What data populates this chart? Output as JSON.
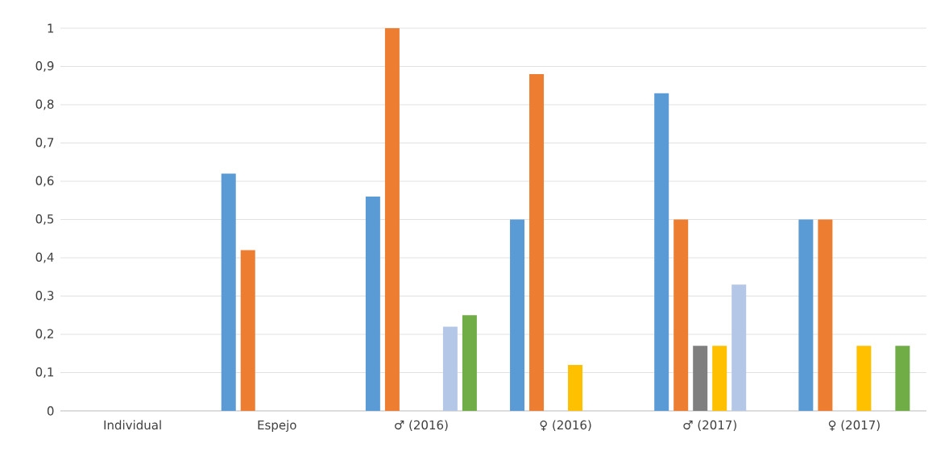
{
  "chart_data": {
    "type": "bar",
    "categories": [
      "Individual",
      "Espejo",
      "♂ (2016)",
      "♀ (2016)",
      "♂ (2017)",
      "♀ (2017)"
    ],
    "series": [
      {
        "color": "#5b9bd5",
        "values": [
          null,
          0.62,
          0.56,
          0.5,
          0.83,
          0.5
        ]
      },
      {
        "color": "#ed7d31",
        "values": [
          null,
          0.42,
          1,
          0.88,
          0.5,
          0.5
        ]
      },
      {
        "color": "#7f7f7f",
        "values": [
          null,
          null,
          null,
          null,
          0.17,
          null
        ]
      },
      {
        "color": "#ffc000",
        "values": [
          null,
          null,
          null,
          0.12,
          0.17,
          0.17
        ]
      },
      {
        "color": "#b4c7e7",
        "values": [
          null,
          null,
          0.22,
          null,
          0.33,
          null
        ]
      },
      {
        "color": "#70ad47",
        "values": [
          null,
          null,
          0.25,
          null,
          null,
          0.17
        ]
      }
    ],
    "ylim": [
      0,
      1
    ],
    "yticks": [
      0,
      {
        "value": 0.1,
        "label": "0,1"
      },
      {
        "value": 0.2,
        "label": "0,2"
      },
      {
        "value": 0.3,
        "label": "0,3"
      },
      {
        "value": 0.4,
        "label": "0,4"
      },
      {
        "value": 0.5,
        "label": "0,5"
      },
      {
        "value": 0.6,
        "label": "0,6"
      },
      {
        "value": 0.7,
        "label": "0,7"
      },
      {
        "value": 0.8,
        "label": "0,8"
      },
      {
        "value": 0.9,
        "label": "0,9"
      },
      1
    ],
    "grid": "y"
  }
}
